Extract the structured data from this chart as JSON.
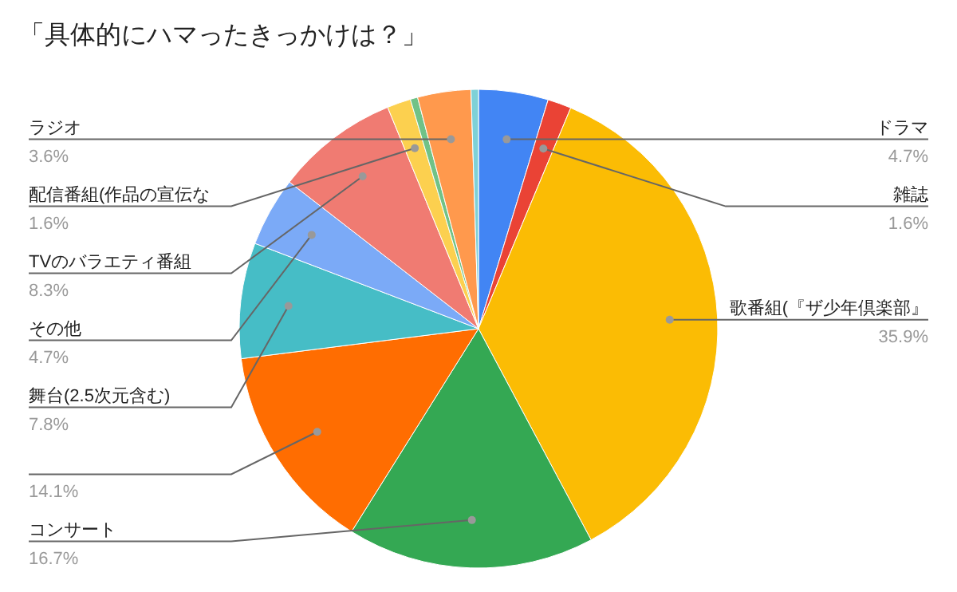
{
  "chart_data": {
    "type": "pie",
    "title": "「具体的にハマったきっかけは？」",
    "categories": [
      "ドラマ",
      "雑誌",
      "歌番組(『ザ少年倶楽部』",
      "コンサート",
      null,
      "舞台(2.5次元含む)",
      "その他",
      "TVのバラエティ番組",
      "配信番組(作品の宣伝な",
      null,
      "ラジオ",
      null
    ],
    "values": [
      4.7,
      1.6,
      35.9,
      16.7,
      14.1,
      7.8,
      4.7,
      8.3,
      1.6,
      0.5,
      3.6,
      0.5
    ],
    "value_labels": [
      "4.7%",
      "1.6%",
      "35.9%",
      "16.7%",
      "14.1%",
      "7.8%",
      "4.7%",
      "8.3%",
      "1.6%",
      null,
      "3.6%",
      null
    ],
    "colors": [
      "#4285f4",
      "#ea4335",
      "#fbbc04",
      "#34a853",
      "#ff6d01",
      "#46bdc6",
      "#7baaf7",
      "#f07b72",
      "#fcd04f",
      "#71c287",
      "#ff994d",
      "#7ed1d7"
    ]
  }
}
